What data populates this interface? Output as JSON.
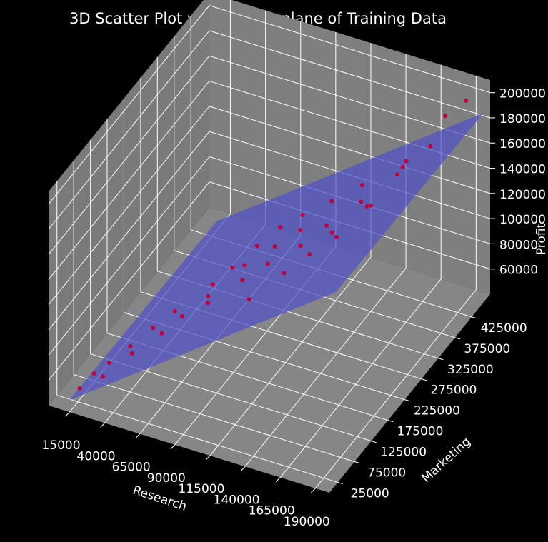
{
  "chart_data": {
    "type": "scatter",
    "title": "3D Scatter Plot with best fit plane of Training Data",
    "xlabel": "Research",
    "ylabel": "Marketing",
    "zlabel": "Profit",
    "x_ticks": [
      "15000",
      "40000",
      "65000",
      "90000",
      "115000",
      "140000",
      "165000",
      "190000"
    ],
    "y_ticks": [
      "25000",
      "75000",
      "125000",
      "175000",
      "225000",
      "275000",
      "325000",
      "375000",
      "425000"
    ],
    "z_ticks": [
      "60000",
      "80000",
      "100000",
      "120000",
      "140000",
      "160000",
      "180000",
      "200000"
    ],
    "xlim": [
      0,
      200000
    ],
    "ylim": [
      0,
      480000
    ],
    "zlim": [
      40000,
      210000
    ],
    "grid": true,
    "background": "#000000",
    "pane_color": "#808080",
    "plane_color": "#5050c8",
    "point_color": "#c0003a",
    "series": [
      {
        "type": "scatter",
        "points": [
          {
            "x": 15000,
            "y": 30000,
            "z": 49000
          },
          {
            "x": 18000,
            "y": 60000,
            "z": 52000
          },
          {
            "x": 24000,
            "y": 80000,
            "z": 56000
          },
          {
            "x": 28000,
            "y": 45000,
            "z": 58000
          },
          {
            "x": 32000,
            "y": 110000,
            "z": 62000
          },
          {
            "x": 38000,
            "y": 90000,
            "z": 65000
          },
          {
            "x": 41000,
            "y": 140000,
            "z": 70000
          },
          {
            "x": 47000,
            "y": 180000,
            "z": 72000
          },
          {
            "x": 52000,
            "y": 120000,
            "z": 76000
          },
          {
            "x": 57000,
            "y": 160000,
            "z": 78000
          },
          {
            "x": 62000,
            "y": 230000,
            "z": 82000
          },
          {
            "x": 66000,
            "y": 200000,
            "z": 84000
          },
          {
            "x": 69000,
            "y": 260000,
            "z": 88000
          },
          {
            "x": 73000,
            "y": 170000,
            "z": 91000
          },
          {
            "x": 77000,
            "y": 300000,
            "z": 95000
          },
          {
            "x": 80000,
            "y": 250000,
            "z": 97000
          },
          {
            "x": 84000,
            "y": 340000,
            "z": 99000
          },
          {
            "x": 88000,
            "y": 210000,
            "z": 101000
          },
          {
            "x": 92000,
            "y": 290000,
            "z": 103000
          },
          {
            "x": 95000,
            "y": 360000,
            "z": 106000
          },
          {
            "x": 99000,
            "y": 240000,
            "z": 108000
          },
          {
            "x": 103000,
            "y": 320000,
            "z": 110000
          },
          {
            "x": 107000,
            "y": 150000,
            "z": 112000
          },
          {
            "x": 111000,
            "y": 380000,
            "z": 116000
          },
          {
            "x": 115000,
            "y": 270000,
            "z": 118000
          },
          {
            "x": 120000,
            "y": 200000,
            "z": 121000
          },
          {
            "x": 124000,
            "y": 310000,
            "z": 124000
          },
          {
            "x": 128000,
            "y": 400000,
            "z": 128000
          },
          {
            "x": 131000,
            "y": 230000,
            "z": 130000
          },
          {
            "x": 135000,
            "y": 280000,
            "z": 132000
          },
          {
            "x": 139000,
            "y": 350000,
            "z": 135000
          },
          {
            "x": 143000,
            "y": 260000,
            "z": 138000
          },
          {
            "x": 148000,
            "y": 330000,
            "z": 141000
          },
          {
            "x": 152000,
            "y": 420000,
            "z": 144000
          },
          {
            "x": 158000,
            "y": 300000,
            "z": 155000
          },
          {
            "x": 164000,
            "y": 380000,
            "z": 166000
          },
          {
            "x": 172000,
            "y": 320000,
            "z": 178000
          },
          {
            "x": 180000,
            "y": 430000,
            "z": 191000
          },
          {
            "x": 186000,
            "y": 360000,
            "z": 192000
          },
          {
            "x": 190000,
            "y": 450000,
            "z": 200000
          }
        ]
      }
    ]
  }
}
